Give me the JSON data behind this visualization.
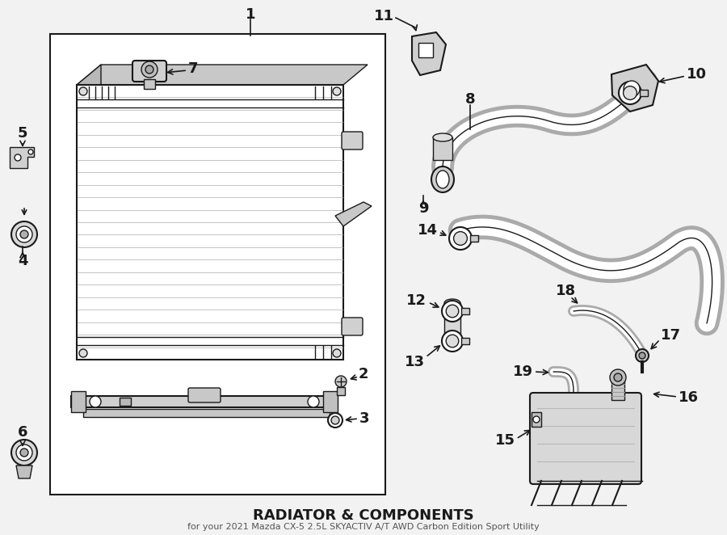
{
  "title": "RADIATOR & COMPONENTS",
  "subtitle": "for your 2021 Mazda CX-5 2.5L SKYACTIV A/T AWD Carbon Edition Sport Utility",
  "bg_color": "#f2f2f2",
  "line_color": "#1a1a1a",
  "figsize": [
    9.0,
    6.62
  ],
  "dpi": 100
}
